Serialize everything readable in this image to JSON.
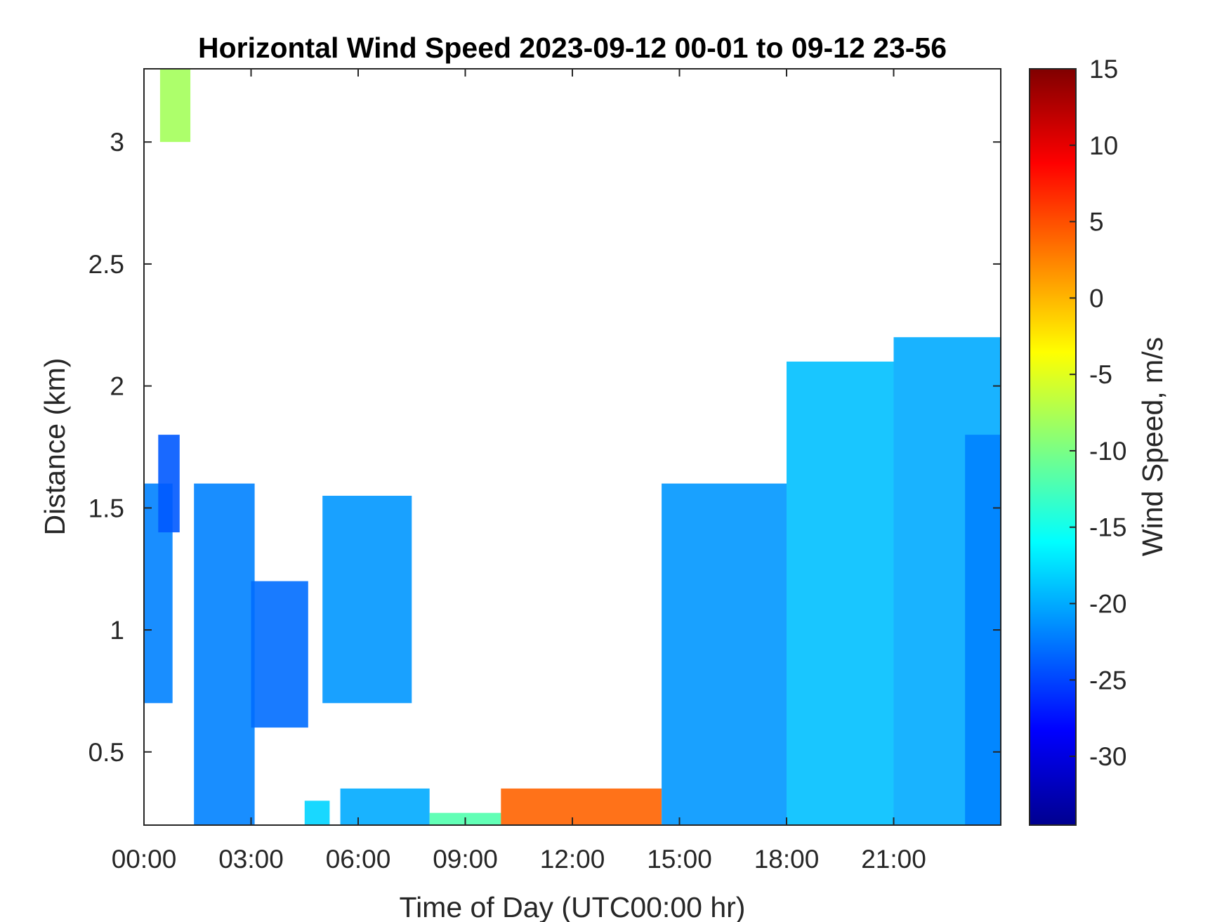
{
  "chart_data": {
    "type": "heatmap",
    "title": "Horizontal Wind Speed 2023-09-12 00-01 to 09-12 23-56",
    "xlabel": "Time of Day (UTC00:00 hr)",
    "ylabel": "Distance (km)",
    "x_unit": "hours",
    "xlim": [
      0,
      24
    ],
    "ylim": [
      0.2,
      3.3
    ],
    "x_ticks": [
      {
        "value": 0,
        "label": "00:00"
      },
      {
        "value": 3,
        "label": "03:00"
      },
      {
        "value": 6,
        "label": "06:00"
      },
      {
        "value": 9,
        "label": "09:00"
      },
      {
        "value": 12,
        "label": "12:00"
      },
      {
        "value": 15,
        "label": "15:00"
      },
      {
        "value": 18,
        "label": "18:00"
      },
      {
        "value": 21,
        "label": "21:00"
      }
    ],
    "y_ticks": [
      {
        "value": 0.5,
        "label": "0.5"
      },
      {
        "value": 1,
        "label": "1"
      },
      {
        "value": 1.5,
        "label": "1.5"
      },
      {
        "value": 2,
        "label": "2"
      },
      {
        "value": 2.5,
        "label": "2.5"
      },
      {
        "value": 3,
        "label": "3"
      }
    ],
    "colorbar": {
      "label": "Wind Speed, m/s",
      "colormap": "jet",
      "clim": [
        -34.5,
        15
      ],
      "ticks": [
        {
          "value": 15,
          "label": "15"
        },
        {
          "value": 10,
          "label": "10"
        },
        {
          "value": 5,
          "label": "5"
        },
        {
          "value": 0,
          "label": "0"
        },
        {
          "value": -5,
          "label": "-5"
        },
        {
          "value": -10,
          "label": "-10"
        },
        {
          "value": -15,
          "label": "-15"
        },
        {
          "value": -20,
          "label": "-20"
        },
        {
          "value": -25,
          "label": "-25"
        },
        {
          "value": -30,
          "label": "-30"
        }
      ]
    },
    "grid": false,
    "regions": [
      {
        "x": [
          0.45,
          1.3
        ],
        "y": [
          3.0,
          3.3
        ],
        "value": -8
      },
      {
        "x": [
          0.0,
          0.8
        ],
        "y": [
          0.7,
          1.6
        ],
        "value": -22
      },
      {
        "x": [
          0.4,
          1.0
        ],
        "y": [
          1.4,
          1.8
        ],
        "value": -24
      },
      {
        "x": [
          1.4,
          3.1
        ],
        "y": [
          0.2,
          1.6
        ],
        "value": -22
      },
      {
        "x": [
          3.0,
          4.6
        ],
        "y": [
          0.6,
          1.2
        ],
        "value": -23
      },
      {
        "x": [
          5.0,
          7.5
        ],
        "y": [
          0.7,
          1.55
        ],
        "value": -21
      },
      {
        "x": [
          4.5,
          5.2
        ],
        "y": [
          0.2,
          0.3
        ],
        "value": -18
      },
      {
        "x": [
          5.5,
          8.0
        ],
        "y": [
          0.2,
          0.35
        ],
        "value": -20
      },
      {
        "x": [
          8.0,
          10.0
        ],
        "y": [
          0.2,
          0.25
        ],
        "value": -12
      },
      {
        "x": [
          10.0,
          14.5
        ],
        "y": [
          0.2,
          0.35
        ],
        "value": 4
      },
      {
        "x": [
          14.5,
          18.0
        ],
        "y": [
          0.2,
          1.6
        ],
        "value": -21
      },
      {
        "x": [
          18.0,
          21.0
        ],
        "y": [
          0.2,
          2.1
        ],
        "value": -19
      },
      {
        "x": [
          21.0,
          24.0
        ],
        "y": [
          0.2,
          2.2
        ],
        "value": -20
      },
      {
        "x": [
          23.0,
          24.0
        ],
        "y": [
          0.2,
          1.8
        ],
        "value": -22
      }
    ]
  }
}
